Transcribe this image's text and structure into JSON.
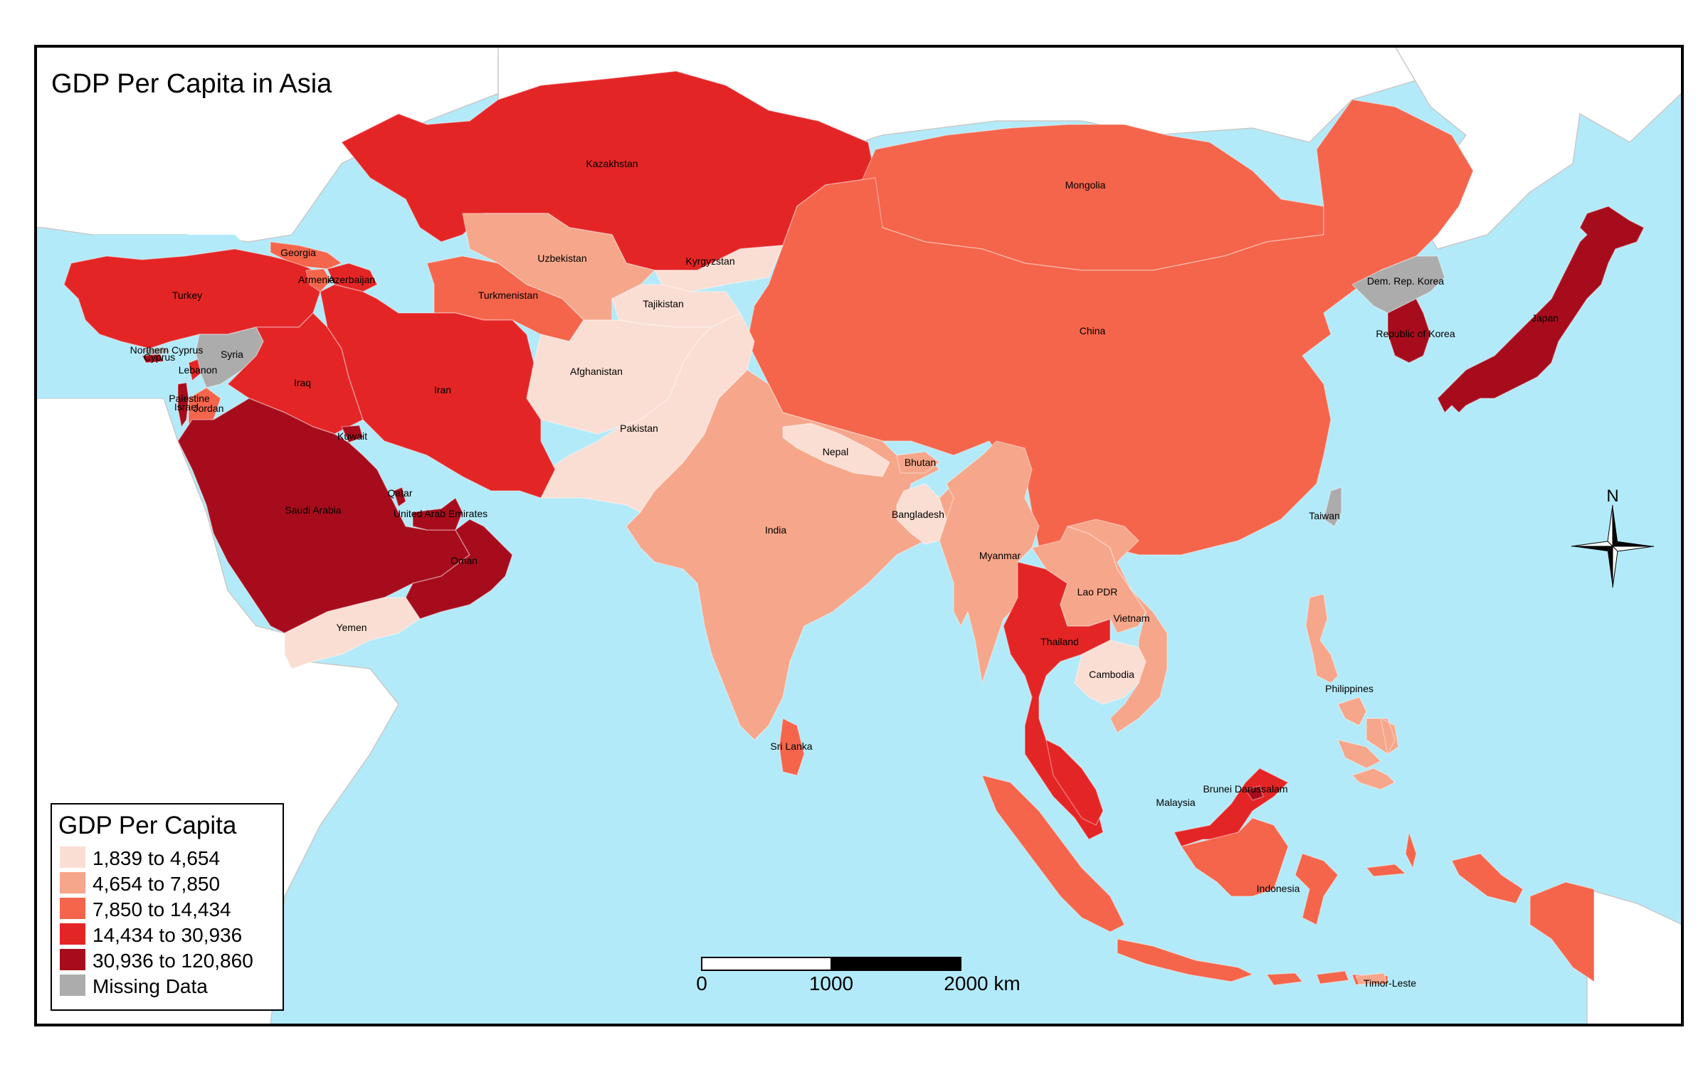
{
  "title": "GDP Per Capita in Asia",
  "colors": {
    "ocean": "#b3eaf9",
    "class1": "#fbded3",
    "class2": "#f6a68a",
    "class3": "#f4654b",
    "class4": "#e42526",
    "class5": "#a70c1c",
    "missing": "#acacac"
  },
  "legend": {
    "title": "GDP Per Capita",
    "items": [
      {
        "label": "1,839 to 4,654",
        "color": "#fbded3"
      },
      {
        "label": "4,654 to 7,850",
        "color": "#f6a68a"
      },
      {
        "label": "7,850 to 14,434",
        "color": "#f4654b"
      },
      {
        "label": "14,434 to 30,936",
        "color": "#e42526"
      },
      {
        "label": "30,936 to 120,860",
        "color": "#a70c1c"
      },
      {
        "label": "Missing Data",
        "color": "#acacac"
      }
    ]
  },
  "scale_bar": {
    "labels": [
      "0",
      "1000",
      "2000 km"
    ]
  },
  "north_arrow": {
    "label": "N"
  },
  "countries": [
    {
      "name": "Kazakhstan",
      "class": "class4"
    },
    {
      "name": "Mongolia",
      "class": "class3"
    },
    {
      "name": "China",
      "class": "class3"
    },
    {
      "name": "Uzbekistan",
      "class": "class2"
    },
    {
      "name": "Kyrgyzstan",
      "class": "class1"
    },
    {
      "name": "Tajikistan",
      "class": "class1"
    },
    {
      "name": "Turkmenistan",
      "class": "class3"
    },
    {
      "name": "Afghanistan",
      "class": "class1"
    },
    {
      "name": "Pakistan",
      "class": "class1"
    },
    {
      "name": "India",
      "class": "class2"
    },
    {
      "name": "Nepal",
      "class": "class1"
    },
    {
      "name": "Bhutan",
      "class": "class2"
    },
    {
      "name": "Bangladesh",
      "class": "class1"
    },
    {
      "name": "Sri Lanka",
      "class": "class3"
    },
    {
      "name": "Myanmar",
      "class": "class2"
    },
    {
      "name": "Thailand",
      "class": "class4"
    },
    {
      "name": "Lao PDR",
      "class": "class2"
    },
    {
      "name": "Vietnam",
      "class": "class2"
    },
    {
      "name": "Cambodia",
      "class": "class1"
    },
    {
      "name": "Malaysia",
      "class": "class4"
    },
    {
      "name": "Brunei Darussalam",
      "class": "class5"
    },
    {
      "name": "Indonesia",
      "class": "class3"
    },
    {
      "name": "Philippines",
      "class": "class2"
    },
    {
      "name": "Timor-Leste",
      "class": "class2"
    },
    {
      "name": "Dem. Rep. Korea",
      "class": "missing"
    },
    {
      "name": "Republic of Korea",
      "class": "class5"
    },
    {
      "name": "Japan",
      "class": "class5"
    },
    {
      "name": "Taiwan",
      "class": "missing"
    },
    {
      "name": "Turkey",
      "class": "class4"
    },
    {
      "name": "Georgia",
      "class": "class3"
    },
    {
      "name": "Armenia",
      "class": "class3"
    },
    {
      "name": "Azerbaijan",
      "class": "class4"
    },
    {
      "name": "Syria",
      "class": "missing"
    },
    {
      "name": "Northern Cyprus",
      "class": "missing"
    },
    {
      "name": "Cyprus",
      "class": "class5"
    },
    {
      "name": "Lebanon",
      "class": "class4"
    },
    {
      "name": "Palestine",
      "class": "class1"
    },
    {
      "name": "Israel",
      "class": "class5"
    },
    {
      "name": "Jordan",
      "class": "class3"
    },
    {
      "name": "Iraq",
      "class": "class4"
    },
    {
      "name": "Iran",
      "class": "class4"
    },
    {
      "name": "Kuwait",
      "class": "class5"
    },
    {
      "name": "Saudi Arabia",
      "class": "class5"
    },
    {
      "name": "Qatar",
      "class": "class5"
    },
    {
      "name": "United Arab Emirates",
      "class": "class5"
    },
    {
      "name": "Oman",
      "class": "class5"
    },
    {
      "name": "Yemen",
      "class": "class1"
    }
  ]
}
